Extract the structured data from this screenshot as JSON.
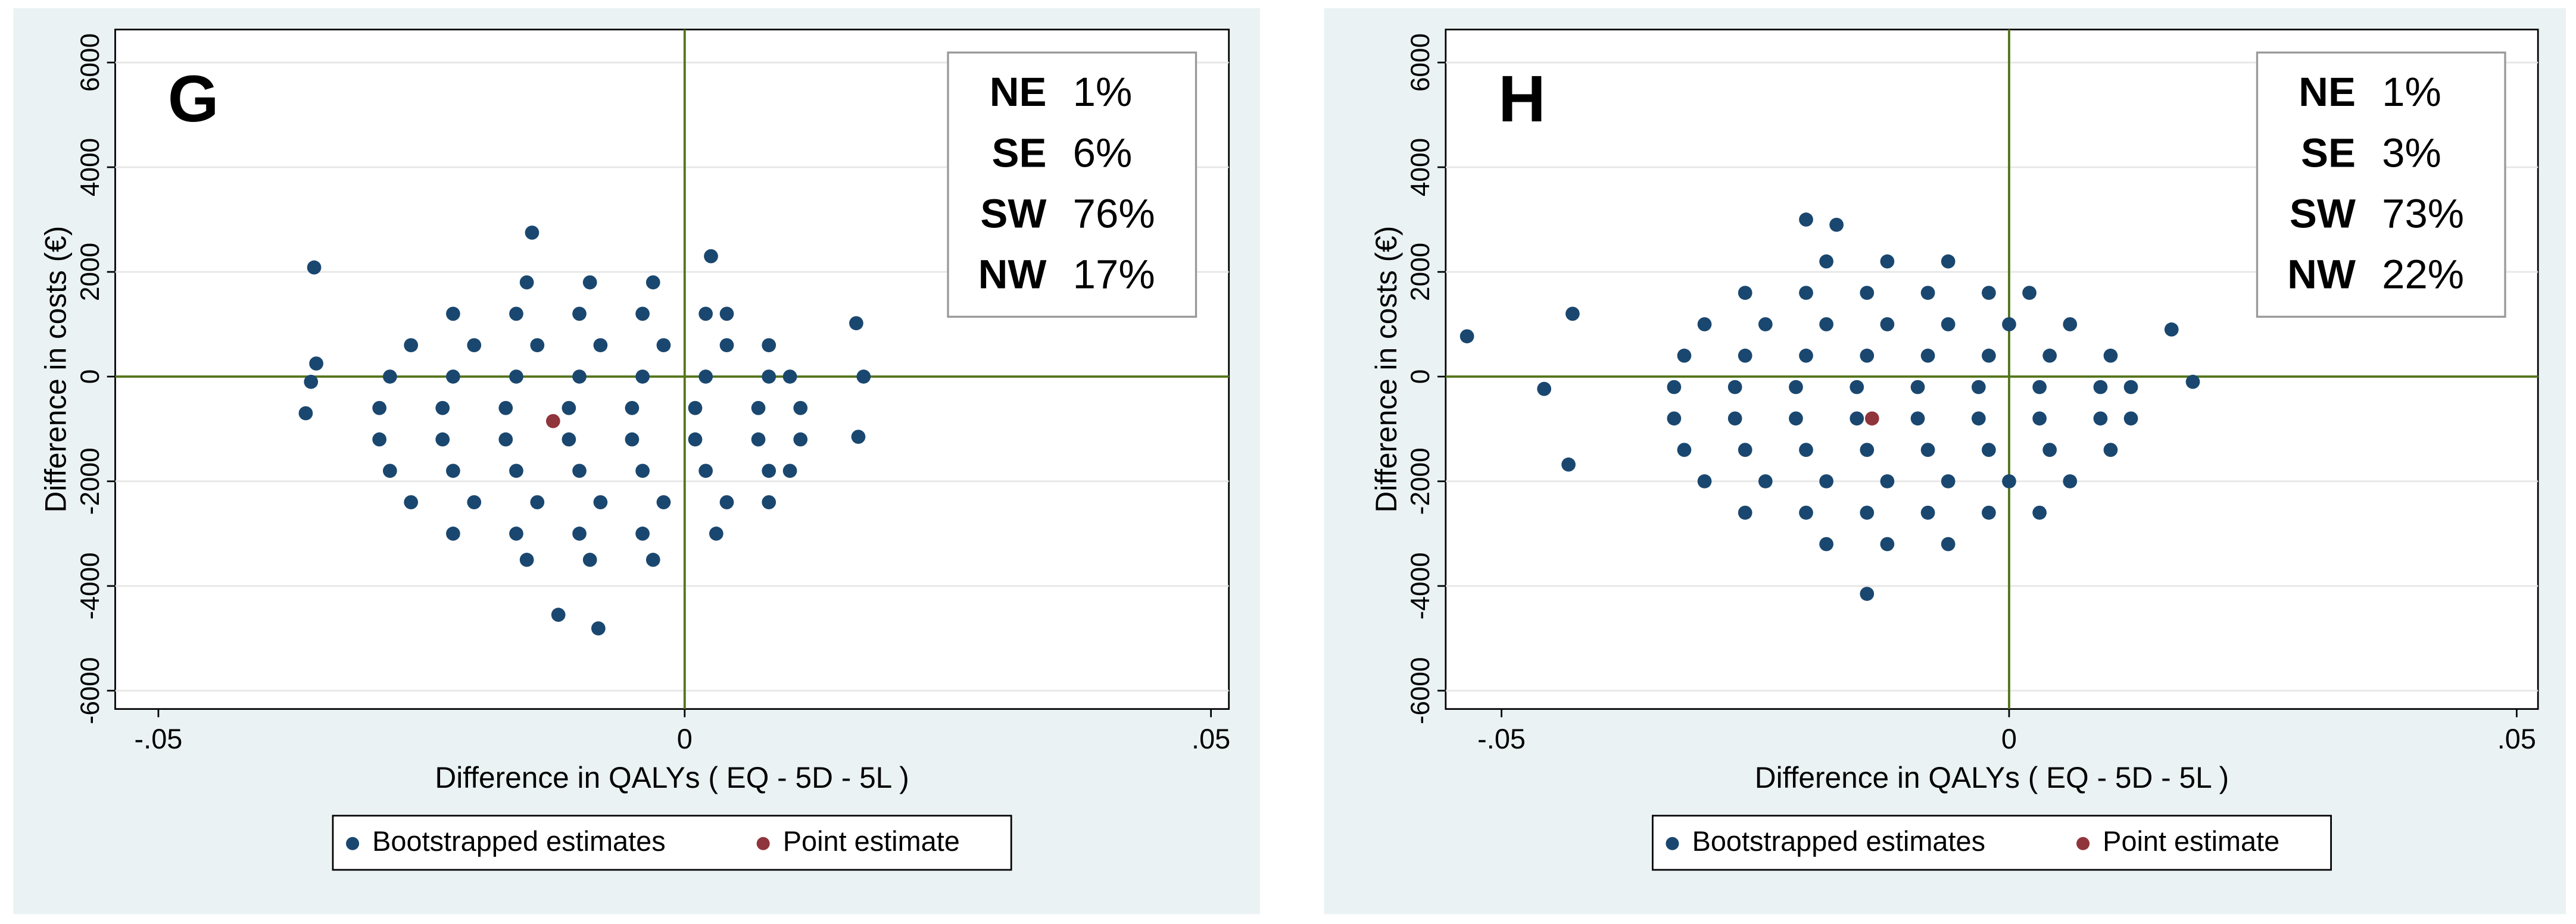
{
  "chart_data": [
    {
      "type": "scatter",
      "panel_label": "G",
      "xlabel": "Difference in QALYs ( EQ - 5D - 5L )",
      "ylabel": "Difference in costs (€)",
      "xlim": [
        -0.0541,
        0.0517
      ],
      "ylim": [
        -6350,
        6630
      ],
      "xticks": [
        {
          "value": -0.05,
          "label": "-.05"
        },
        0,
        {
          "value": 0.05,
          "label": ".05"
        }
      ],
      "yticks": [
        -6000,
        -4000,
        -2000,
        0,
        2000,
        4000,
        6000
      ],
      "grid": true,
      "hline": 0,
      "vline": 0,
      "legend": "bottom",
      "quadrants": {
        "categories": [
          "NE",
          "SE",
          "SW",
          "NW"
        ],
        "values": [
          1,
          6,
          76,
          17
        ],
        "value_labels": [
          "1%",
          "6%",
          "76%",
          "17%"
        ]
      },
      "series": [
        {
          "name": "Bootstrapped estimates",
          "color": "#1a476f",
          "x": [
            -0.015,
            -0.009,
            -0.003,
            -0.022,
            -0.016,
            -0.01,
            -0.004,
            0.002,
            0.004,
            -0.026,
            -0.02,
            -0.014,
            -0.008,
            -0.002,
            0.004,
            0.008,
            -0.028,
            -0.022,
            -0.016,
            -0.01,
            -0.004,
            0.002,
            0.008,
            0.01,
            -0.029,
            -0.023,
            -0.017,
            -0.011,
            -0.005,
            0.001,
            0.007,
            0.011,
            -0.029,
            -0.023,
            -0.017,
            -0.011,
            -0.005,
            0.001,
            0.007,
            0.011,
            -0.028,
            -0.022,
            -0.016,
            -0.01,
            -0.004,
            0.002,
            0.008,
            0.01,
            -0.026,
            -0.02,
            -0.014,
            -0.008,
            -0.002,
            0.004,
            0.008,
            -0.022,
            -0.016,
            -0.01,
            -0.004,
            0.003,
            -0.015,
            -0.009,
            -0.003,
            -0.036,
            -0.0355,
            -0.035,
            -0.0352,
            0.0163,
            0.0165,
            0.017,
            -0.0082,
            -0.012,
            0.0025,
            -0.0145
          ],
          "y": [
            1800,
            1800,
            1800,
            1200,
            1200,
            1200,
            1200,
            1200,
            1200,
            600,
            600,
            600,
            600,
            600,
            600,
            600,
            0,
            0,
            0,
            0,
            0,
            0,
            0,
            0,
            -600,
            -600,
            -600,
            -600,
            -600,
            -600,
            -600,
            -600,
            -1200,
            -1200,
            -1200,
            -1200,
            -1200,
            -1200,
            -1200,
            -1200,
            -1800,
            -1800,
            -1800,
            -1800,
            -1800,
            -1800,
            -1800,
            -1800,
            -2400,
            -2400,
            -2400,
            -2400,
            -2400,
            -2400,
            -2400,
            -3000,
            -3000,
            -3000,
            -3000,
            -3000,
            -3500,
            -3500,
            -3500,
            -700,
            -100,
            250,
            2085,
            1020,
            -1150,
            0,
            -4810,
            -4550,
            2300,
            2750
          ]
        },
        {
          "name": "Point estimate",
          "color": "#90353b",
          "x": [
            -0.0125
          ],
          "y": [
            -850
          ]
        }
      ]
    },
    {
      "type": "scatter",
      "panel_label": "H",
      "xlabel": "Difference in QALYs ( EQ - 5D - 5L )",
      "ylabel": "Difference in costs (€)",
      "xlim": [
        -0.0555,
        0.0521
      ],
      "ylim": [
        -6350,
        6630
      ],
      "xticks": [
        {
          "value": -0.05,
          "label": "-.05"
        },
        0,
        {
          "value": 0.05,
          "label": ".05"
        }
      ],
      "yticks": [
        -6000,
        -4000,
        -2000,
        0,
        2000,
        4000,
        6000
      ],
      "grid": true,
      "hline": 0,
      "vline": 0,
      "legend": "bottom",
      "quadrants": {
        "categories": [
          "NE",
          "SE",
          "SW",
          "NW"
        ],
        "values": [
          1,
          3,
          73,
          22
        ],
        "value_labels": [
          "1%",
          "3%",
          "73%",
          "22%"
        ]
      },
      "series": [
        {
          "name": "Bootstrapped estimates",
          "color": "#1a476f",
          "x": [
            -0.018,
            -0.012,
            -0.006,
            -0.026,
            -0.02,
            -0.014,
            -0.008,
            -0.002,
            0.002,
            -0.03,
            -0.024,
            -0.018,
            -0.012,
            -0.006,
            0.0,
            0.006,
            -0.032,
            -0.026,
            -0.02,
            -0.014,
            -0.008,
            -0.002,
            0.004,
            0.01,
            -0.033,
            -0.027,
            -0.021,
            -0.015,
            -0.009,
            -0.003,
            0.003,
            0.009,
            0.012,
            -0.033,
            -0.027,
            -0.021,
            -0.015,
            -0.009,
            -0.003,
            0.003,
            0.009,
            0.012,
            -0.032,
            -0.026,
            -0.02,
            -0.014,
            -0.008,
            -0.002,
            0.004,
            0.01,
            -0.03,
            -0.024,
            -0.018,
            -0.012,
            -0.006,
            0.0,
            0.006,
            -0.026,
            -0.02,
            -0.014,
            -0.008,
            -0.002,
            0.003,
            -0.018,
            -0.012,
            -0.006,
            -0.0534,
            -0.0458,
            -0.043,
            -0.0434,
            0.0181,
            0.016,
            -0.014,
            -0.02,
            -0.017
          ],
          "y": [
            2200,
            2200,
            2200,
            1600,
            1600,
            1600,
            1600,
            1600,
            1600,
            1000,
            1000,
            1000,
            1000,
            1000,
            1000,
            1000,
            400,
            400,
            400,
            400,
            400,
            400,
            400,
            400,
            -200,
            -200,
            -200,
            -200,
            -200,
            -200,
            -200,
            -200,
            -200,
            -800,
            -800,
            -800,
            -800,
            -800,
            -800,
            -800,
            -800,
            -800,
            -1400,
            -1400,
            -1400,
            -1400,
            -1400,
            -1400,
            -1400,
            -1400,
            -2000,
            -2000,
            -2000,
            -2000,
            -2000,
            -2000,
            -2000,
            -2600,
            -2600,
            -2600,
            -2600,
            -2600,
            -2600,
            -3200,
            -3200,
            -3200,
            770,
            -235,
            1200,
            -1680,
            -100,
            900,
            -4150,
            3000,
            2900
          ]
        },
        {
          "name": "Point estimate",
          "color": "#90353b",
          "x": [
            -0.0135
          ],
          "y": [
            -800
          ]
        }
      ]
    }
  ]
}
